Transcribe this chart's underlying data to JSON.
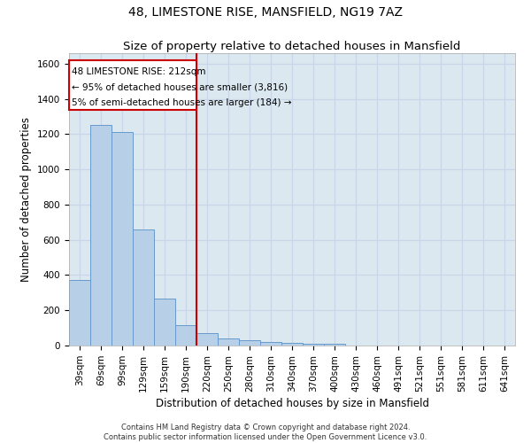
{
  "title_line1": "48, LIMESTONE RISE, MANSFIELD, NG19 7AZ",
  "title_line2": "Size of property relative to detached houses in Mansfield",
  "xlabel": "Distribution of detached houses by size in Mansfield",
  "ylabel": "Number of detached properties",
  "footnote1": "Contains HM Land Registry data © Crown copyright and database right 2024.",
  "footnote2": "Contains public sector information licensed under the Open Government Licence v3.0.",
  "categories": [
    "39sqm",
    "69sqm",
    "99sqm",
    "129sqm",
    "159sqm",
    "190sqm",
    "220sqm",
    "250sqm",
    "280sqm",
    "310sqm",
    "340sqm",
    "370sqm",
    "400sqm",
    "430sqm",
    "460sqm",
    "491sqm",
    "521sqm",
    "551sqm",
    "581sqm",
    "611sqm",
    "641sqm"
  ],
  "values": [
    370,
    1255,
    1210,
    660,
    265,
    115,
    70,
    42,
    30,
    20,
    15,
    10,
    10,
    0,
    0,
    0,
    0,
    0,
    0,
    0,
    0
  ],
  "bar_color": "#b8cfe8",
  "bar_edge_color": "#6699cc",
  "vline_color": "#cc0000",
  "vline_pos": 6.0,
  "annotation_text_line1": "48 LIMESTONE RISE: 212sqm",
  "annotation_text_line2": "← 95% of detached houses are smaller (3,816)",
  "annotation_text_line3": "5% of semi-detached houses are larger (184) →",
  "annotation_box_color": "#cc0000",
  "annotation_box_facecolor": "white",
  "ylim": [
    0,
    1660
  ],
  "yticks": [
    0,
    200,
    400,
    600,
    800,
    1000,
    1200,
    1400,
    1600
  ],
  "grid_color": "#c8d4e8",
  "background_color": "#dce8f0",
  "title_fontsize": 10,
  "subtitle_fontsize": 9.5,
  "axis_label_fontsize": 8.5,
  "tick_fontsize": 7.5,
  "ann_fontsize": 7.5
}
